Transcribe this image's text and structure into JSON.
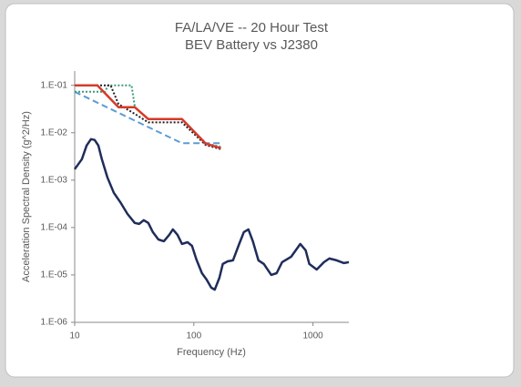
{
  "chart_data": {
    "type": "line",
    "title": [
      "FA/LA/VE -- 20 Hour Test",
      "BEV Battery vs J2380"
    ],
    "x_label": "Frequency (Hz)",
    "y_label": "Acceleration Spectral Density (g^2/Hz)",
    "x_log": true,
    "y_log": true,
    "xlim": [
      10,
      2000
    ],
    "ylim": [
      1e-06,
      0.2
    ],
    "xticks": [
      10,
      100,
      1000
    ],
    "yticks": [
      {
        "value": 0.1,
        "label": "1.E-01"
      },
      {
        "value": 0.01,
        "label": "1.E-02"
      },
      {
        "value": 0.001,
        "label": "1.E-03"
      },
      {
        "value": 0.0001,
        "label": "1.E-04"
      },
      {
        "value": 1e-05,
        "label": "1.E-05"
      },
      {
        "value": 1e-06,
        "label": "1.E-06"
      }
    ],
    "grid": false,
    "series": [
      {
        "color": "#5b9bd5",
        "style": "dashed",
        "x": [
          10,
          79.6,
          175
        ],
        "values": [
          0.073,
          0.006,
          0.006
        ]
      },
      {
        "color": "#3a9a7a",
        "style": "dotted",
        "x": [
          10,
          18,
          19,
          30,
          32,
          41.5,
          79.6,
          126,
          169
        ],
        "values": [
          0.073,
          0.073,
          0.1,
          0.1,
          0.0345,
          0.0194,
          0.0194,
          0.006,
          0.005
        ]
      },
      {
        "color": "#222222",
        "style": "dotted",
        "x": [
          10,
          20,
          23.3,
          31.9,
          41.5,
          79.6,
          126,
          169
        ],
        "values": [
          0.1,
          0.1,
          0.04,
          0.025,
          0.0165,
          0.0165,
          0.0055,
          0.0045
        ]
      },
      {
        "color": "#d63a2a",
        "style": "solid",
        "x": [
          10,
          15.5,
          23.3,
          31.9,
          41.5,
          79.6,
          126,
          169
        ],
        "values": [
          0.1,
          0.1,
          0.0345,
          0.0345,
          0.0194,
          0.0194,
          0.00588,
          0.00471
        ]
      },
      {
        "color": "#1f2d5a",
        "style": "solid",
        "x": [
          10,
          11.5,
          12.6,
          13.7,
          14.7,
          15.8,
          16.9,
          18.8,
          21.3,
          24.1,
          27.7,
          31.9,
          34.8,
          38.0,
          41.5,
          45.3,
          50.4,
          56.0,
          62.2,
          66.7,
          72.9,
          79.6,
          88.5,
          96.6,
          105,
          117,
          128,
          140,
          150,
          164,
          175,
          192,
          213,
          237,
          263,
          287,
          313,
          348,
          387,
          446,
          495,
          550,
          656,
          782,
          869,
          931,
          1074,
          1236,
          1372,
          1579,
          1820,
          2000
        ],
        "values": [
          0.0017,
          0.00277,
          0.00538,
          0.00733,
          0.00702,
          0.00538,
          0.00277,
          0.00114,
          0.000538,
          0.000345,
          0.000194,
          0.000125,
          0.000119,
          0.000143,
          0.000125,
          8e-05,
          5.6e-05,
          5.15e-05,
          7e-05,
          9.15e-05,
          7e-05,
          4.5e-05,
          4.9e-05,
          4.1e-05,
          2.12e-05,
          1.09e-05,
          8e-06,
          5.4e-06,
          4.9e-06,
          8.75e-06,
          1.7e-05,
          1.94e-05,
          2.03e-05,
          4.1e-05,
          8e-05,
          9.15e-05,
          5.15e-05,
          2.03e-05,
          1.7e-05,
          1e-05,
          1.09e-05,
          1.86e-05,
          2.43e-05,
          4.5e-05,
          3.3e-05,
          1.7e-05,
          1.3e-05,
          1.86e-05,
          2.22e-05,
          2.03e-05,
          1.78e-05,
          1.86e-05
        ]
      }
    ]
  }
}
